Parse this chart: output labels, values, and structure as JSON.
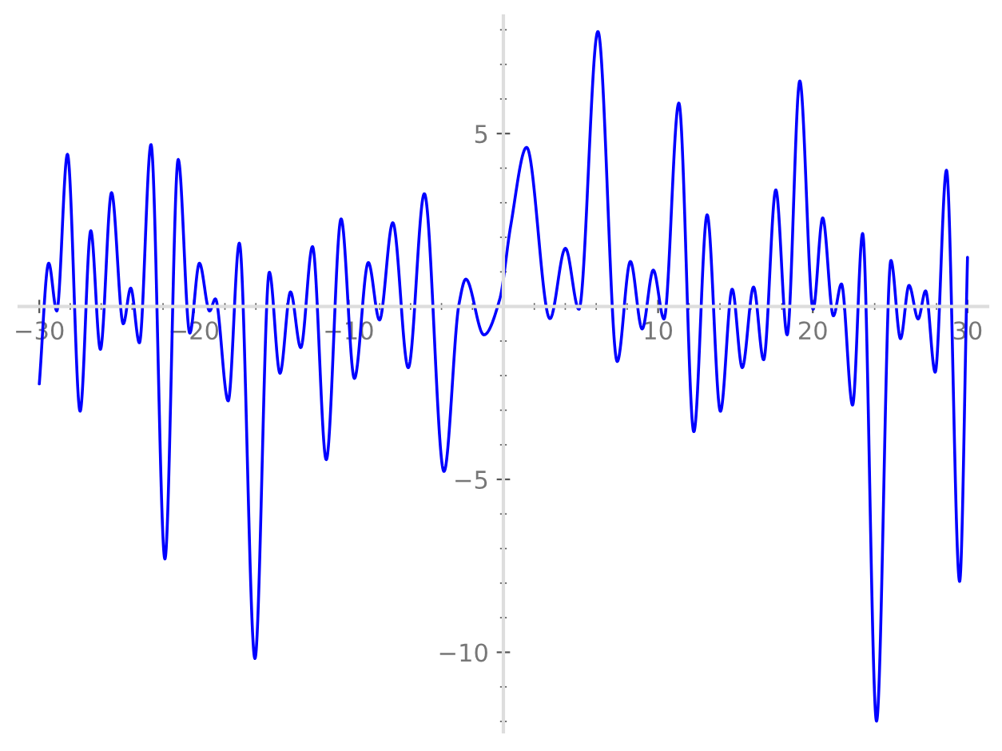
{
  "chart_data": {
    "type": "line",
    "xlim": [
      -31.3,
      31.3
    ],
    "ylim": [
      -12.3,
      8.4
    ],
    "xticks": [
      {
        "value": -30,
        "label": "−30"
      },
      {
        "value": -20,
        "label": "−20"
      },
      {
        "value": -10,
        "label": "−10"
      },
      10,
      20,
      30
    ],
    "yticks": [
      {
        "value": -10,
        "label": "−10"
      },
      {
        "value": -5,
        "label": "−5"
      },
      5
    ],
    "grid": false,
    "series": [
      {
        "color": "#0000ff",
        "x": [
          -30.0,
          -29.39,
          -28.87,
          -28.18,
          -27.36,
          -26.67,
          -26.05,
          -25.33,
          -24.57,
          -24.09,
          -23.53,
          -22.78,
          -21.88,
          -21.02,
          -20.27,
          -19.65,
          -18.99,
          -18.62,
          -17.79,
          -17.07,
          -16.06,
          -15.13,
          -14.44,
          -13.76,
          -13.1,
          -12.34,
          -11.45,
          -10.49,
          -9.63,
          -8.73,
          -8.01,
          -7.15,
          -6.15,
          -5.11,
          -3.84,
          -2.87,
          -2.43,
          -1.26,
          -0.23,
          0.46,
          1.5,
          3.01,
          4.01,
          4.88,
          6.11,
          7.36,
          8.21,
          8.97,
          9.69,
          10.38,
          11.34,
          12.31,
          13.17,
          14.03,
          14.79,
          15.44,
          16.17,
          16.82,
          17.61,
          18.34,
          19.16,
          20.02,
          20.64,
          21.33,
          21.85,
          22.57,
          23.22,
          24.12,
          25.05,
          25.67,
          26.22,
          26.81,
          27.29,
          27.91,
          28.64,
          29.49,
          30.0
        ],
        "values": [
          -2.24,
          1.25,
          -0.13,
          4.4,
          -3.03,
          2.19,
          -1.24,
          3.29,
          -0.5,
          0.53,
          -1.05,
          4.68,
          -7.3,
          4.25,
          -0.77,
          1.25,
          -0.13,
          0.22,
          -2.73,
          1.83,
          -10.18,
          0.99,
          -1.93,
          0.42,
          -1.19,
          1.73,
          -4.43,
          2.53,
          -2.08,
          1.27,
          -0.39,
          2.42,
          -1.77,
          3.26,
          -4.77,
          0.07,
          0.79,
          -0.82,
          0.22,
          2.3,
          4.6,
          -0.35,
          1.68,
          -0.08,
          7.95,
          -1.59,
          1.3,
          -0.65,
          1.05,
          -0.36,
          5.88,
          -3.62,
          2.65,
          -3.03,
          0.5,
          -1.77,
          0.56,
          -1.54,
          3.37,
          -0.82,
          6.52,
          -0.08,
          2.56,
          -0.27,
          0.65,
          -2.85,
          2.11,
          -11.99,
          1.33,
          -0.93,
          0.61,
          -0.36,
          0.45,
          -1.9,
          3.94,
          -7.95,
          1.42
        ]
      }
    ]
  }
}
